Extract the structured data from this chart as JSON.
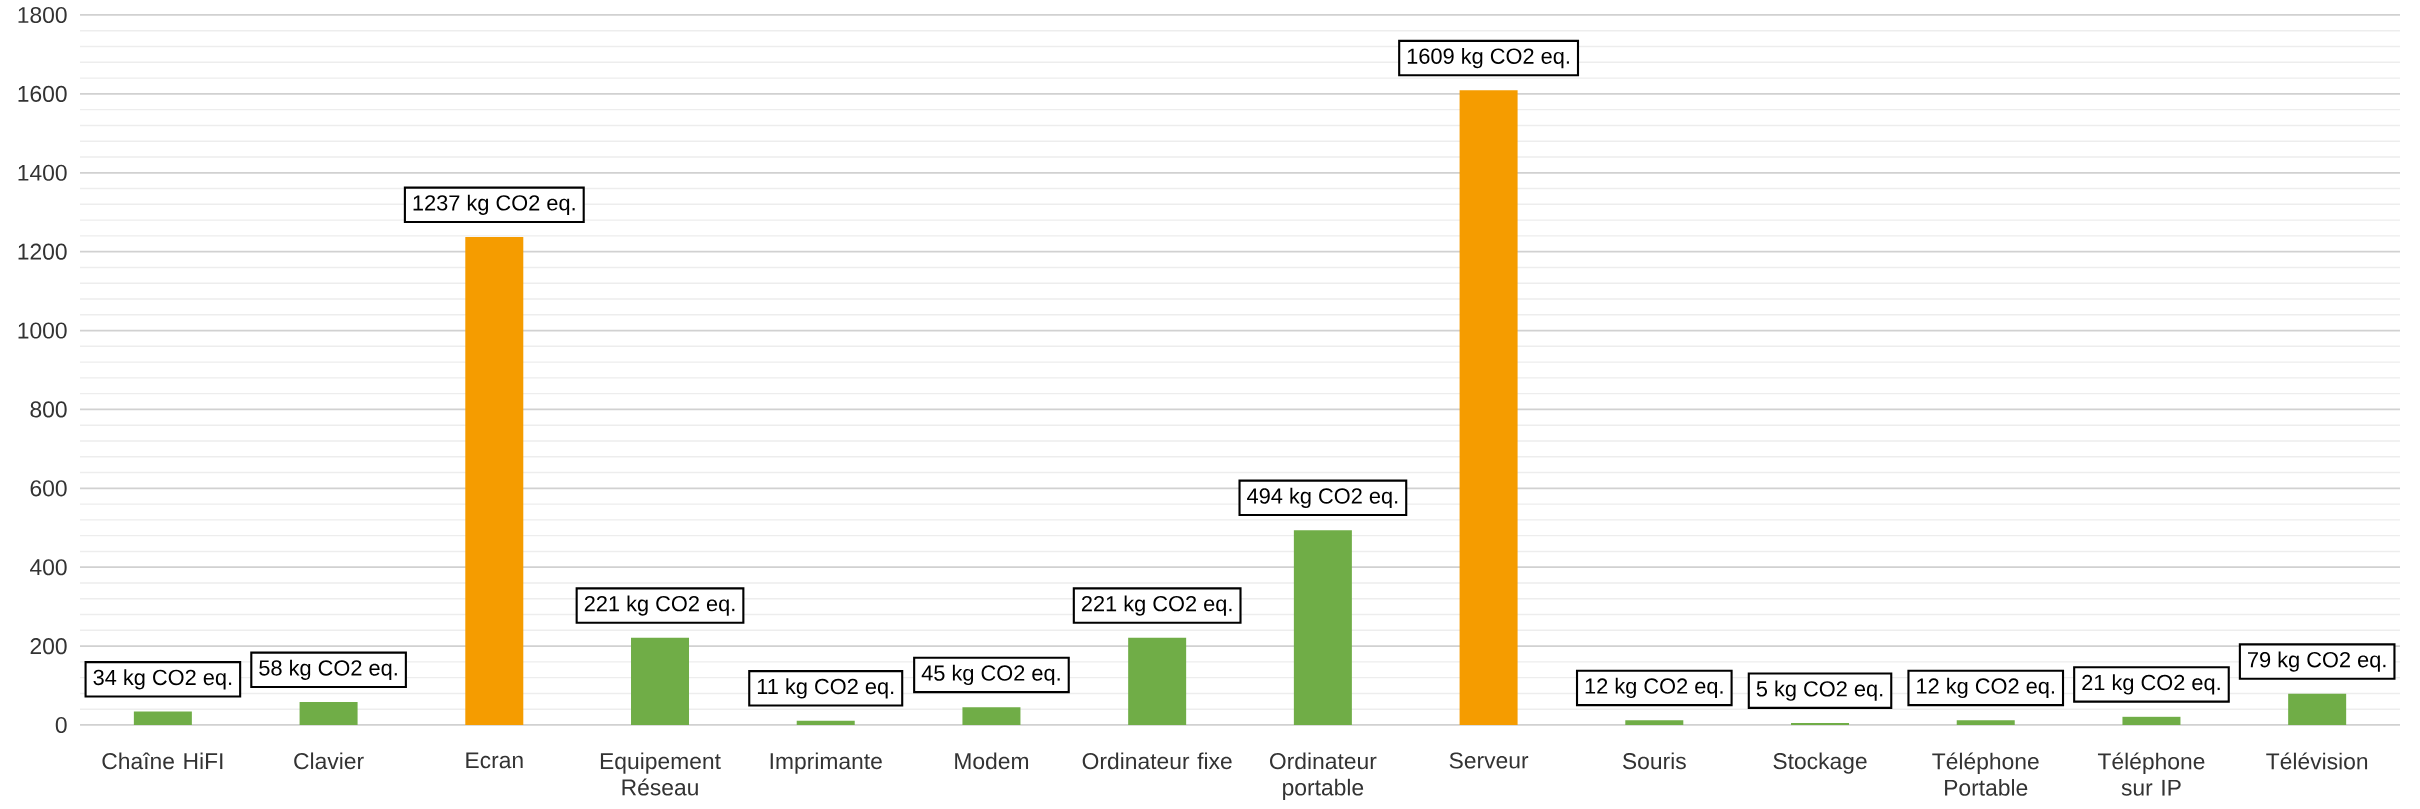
{
  "chart_data": {
    "type": "bar",
    "categories": [
      "Chaîne HiFI",
      "Clavier",
      "Ecran",
      "Equipement Réseau",
      "Imprimante",
      "Modem",
      "Ordinateur fixe",
      "Ordinateur portable",
      "Serveur",
      "Souris",
      "Stockage",
      "Téléphone Portable",
      "Téléphone sur IP",
      "Télévision"
    ],
    "values": [
      34,
      58,
      1237,
      221,
      11,
      45,
      221,
      494,
      1609,
      12,
      5,
      12,
      21,
      79
    ],
    "colors": [
      "#70ad47",
      "#70ad47",
      "#f59c00",
      "#70ad47",
      "#70ad47",
      "#70ad47",
      "#70ad47",
      "#70ad47",
      "#f59c00",
      "#70ad47",
      "#70ad47",
      "#70ad47",
      "#70ad47",
      "#70ad47"
    ],
    "value_labels": [
      "34 kg CO2 eq.",
      "58 kg CO2 eq.",
      "1237 kg CO2 eq.",
      "221 kg CO2 eq.",
      "11 kg CO2 eq.",
      "45 kg CO2 eq.",
      "221 kg CO2 eq.",
      "494 kg CO2 eq.",
      "1609 kg CO2 eq.",
      "12 kg CO2 eq.",
      "5 kg CO2 eq.",
      "12 kg CO2 eq.",
      "21 kg CO2 eq.",
      "79 kg CO2 eq."
    ],
    "ylim": [
      0,
      1800
    ],
    "yticks": [
      0,
      200,
      400,
      600,
      800,
      1000,
      1200,
      1400,
      1600,
      1800
    ],
    "grid": "y"
  }
}
